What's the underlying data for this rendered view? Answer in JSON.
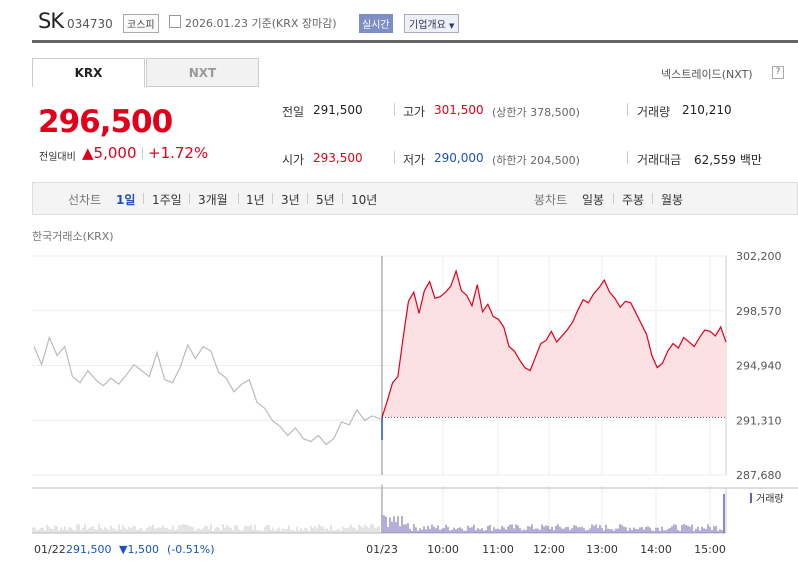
{
  "header": {
    "name": "SK",
    "code": "034730",
    "market": "코스피",
    "date": "2026.01.23",
    "basis": "기준(KRX 장마감)",
    "realtime_label": "실시간",
    "corp_info_label": "기업개요"
  },
  "tabs": [
    "KRX",
    "NXT"
  ],
  "nxt_link": "넥스트레이드(NXT)",
  "help_label": "?",
  "price": {
    "current": "296,500",
    "change_label": "전일대비",
    "change": "5,000",
    "change_pct": "+1.72%"
  },
  "stats": {
    "prev_label": "전일",
    "prev": "291,500",
    "high_label": "고가",
    "high": "301,500",
    "upper_limit": "(상한가 378,500)",
    "volume_label": "거래량",
    "volume": "210,210",
    "open_label": "시가",
    "open": "293,500",
    "low_label": "저가",
    "low": "290,000",
    "lower_limit": "(하한가 204,500)",
    "amount_label": "거래대금",
    "amount": "62,559",
    "amount_unit": "백만"
  },
  "period": {
    "line_label": "선차트",
    "line_options": [
      "1일",
      "1주일",
      "3개월",
      "1년",
      "3년",
      "5년",
      "10년"
    ],
    "selected": "1일",
    "candle_label": "봉차트",
    "candle_options": [
      "일봉",
      "주봉",
      "월봉"
    ]
  },
  "exchange_label": "한국거래소(KRX)",
  "colors": {
    "up": "#e0001a",
    "down": "#1a52c4",
    "prev_day": "#bbbbbb",
    "fill": "#fbe1e3",
    "volume": "#6a5fb0"
  },
  "chart_data": {
    "type": "line",
    "ylim": [
      287680,
      302200
    ],
    "yticks": [
      "302,200",
      "298,570",
      "294,940",
      "291,310",
      "287,680"
    ],
    "xticks": [
      "01/23",
      "10:00",
      "11:00",
      "12:00",
      "13:00",
      "14:00",
      "15:00"
    ],
    "reference_price": 291500,
    "volume_legend": "거래량",
    "prev_day_summary": {
      "date": "01/22",
      "close": "291,500",
      "change": "▼1,500",
      "pct": "(-0.51%)"
    },
    "series": [
      {
        "date": "01/22",
        "values": [
          296200,
          295000,
          296800,
          295600,
          296200,
          294200,
          293800,
          294600,
          294000,
          293600,
          294100,
          293700,
          294300,
          295000,
          294600,
          294200,
          295800,
          294000,
          293800,
          294800,
          296300,
          295400,
          296200,
          295900,
          294500,
          294100,
          293200,
          293700,
          294000,
          292500,
          292100,
          291300,
          290900,
          290300,
          290800,
          290100,
          289900,
          290300,
          289700,
          290100,
          291200,
          291000,
          292000,
          291300,
          291600,
          291400
        ]
      },
      {
        "date": "01/23",
        "values": [
          291500,
          292600,
          293800,
          294200,
          296800,
          299200,
          299800,
          298400,
          299900,
          300500,
          299400,
          299500,
          299800,
          300200,
          301200,
          299900,
          299600,
          298900,
          300300,
          298500,
          299000,
          298200,
          298000,
          297500,
          296200,
          295900,
          295300,
          294800,
          294600,
          295500,
          296400,
          296600,
          297200,
          296500,
          296900,
          297300,
          297800,
          298600,
          299300,
          299100,
          299700,
          300100,
          300600,
          299800,
          299400,
          298800,
          299200,
          299100,
          298400,
          297700,
          297000,
          295600,
          294800,
          295100,
          295900,
          296400,
          296100,
          296800,
          296500,
          296200,
          296800,
          297300,
          297200,
          296900,
          297500,
          296500
        ]
      }
    ]
  }
}
